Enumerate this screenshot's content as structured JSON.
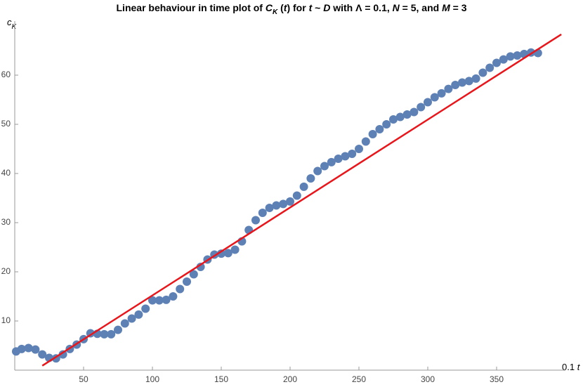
{
  "chart_data": {
    "type": "scatter",
    "title_parts": [
      "Linear behaviour in time plot of ",
      "C",
      "K",
      " (",
      "t",
      ") for ",
      "t",
      " ~ ",
      "D",
      " with Λ = 0.1,  ",
      "N",
      " = 5, and ",
      "M",
      " = 3"
    ],
    "y_label_parts": [
      "c",
      "K"
    ],
    "x_label_parts": [
      "0.1 ",
      "t"
    ],
    "xlim": [
      0,
      400
    ],
    "ylim": [
      0,
      71
    ],
    "xticks": [
      50,
      100,
      150,
      200,
      250,
      300,
      350
    ],
    "yticks": [
      10,
      20,
      30,
      40,
      50,
      60
    ],
    "grid": false,
    "series": [
      {
        "type": "scatter",
        "color": "#5e81b5",
        "x": [
          1,
          5,
          10,
          15,
          20,
          25,
          30,
          35,
          40,
          45,
          50,
          55,
          60,
          65,
          70,
          75,
          80,
          85,
          90,
          95,
          100,
          105,
          110,
          115,
          120,
          125,
          130,
          135,
          140,
          145,
          150,
          155,
          160,
          165,
          170,
          175,
          180,
          185,
          190,
          195,
          200,
          205,
          210,
          215,
          220,
          225,
          230,
          235,
          240,
          245,
          250,
          255,
          260,
          265,
          270,
          275,
          280,
          285,
          290,
          295,
          300,
          305,
          310,
          315,
          320,
          325,
          330,
          335,
          340,
          345,
          350,
          355,
          360,
          365,
          370,
          375,
          380
        ],
        "values": [
          3.8,
          4.3,
          4.5,
          4.2,
          3.2,
          2.5,
          2.4,
          3.2,
          4.3,
          5.2,
          6.3,
          7.5,
          7.4,
          7.3,
          7.3,
          8.2,
          9.5,
          10.5,
          11.3,
          12.5,
          14.2,
          14.2,
          14.3,
          15.0,
          16.5,
          18.0,
          19.5,
          21.0,
          22.5,
          23.5,
          23.7,
          23.8,
          24.5,
          26.2,
          28.5,
          30.5,
          32.0,
          33.0,
          33.5,
          33.8,
          34.3,
          35.5,
          37.3,
          39.0,
          40.5,
          41.5,
          42.3,
          43.0,
          43.5,
          44.0,
          45.0,
          46.5,
          48.0,
          49.0,
          50.0,
          51.0,
          51.5,
          52.0,
          52.5,
          53.5,
          54.5,
          55.5,
          56.3,
          57.2,
          58.0,
          58.5,
          58.8,
          59.3,
          60.5,
          61.5,
          62.5,
          63.2,
          63.8,
          64.0,
          64.3,
          64.6,
          64.5
        ]
      },
      {
        "type": "line",
        "color": "#e8161b",
        "x": [
          20,
          397
        ],
        "values": [
          0.9,
          68.3
        ]
      }
    ]
  }
}
